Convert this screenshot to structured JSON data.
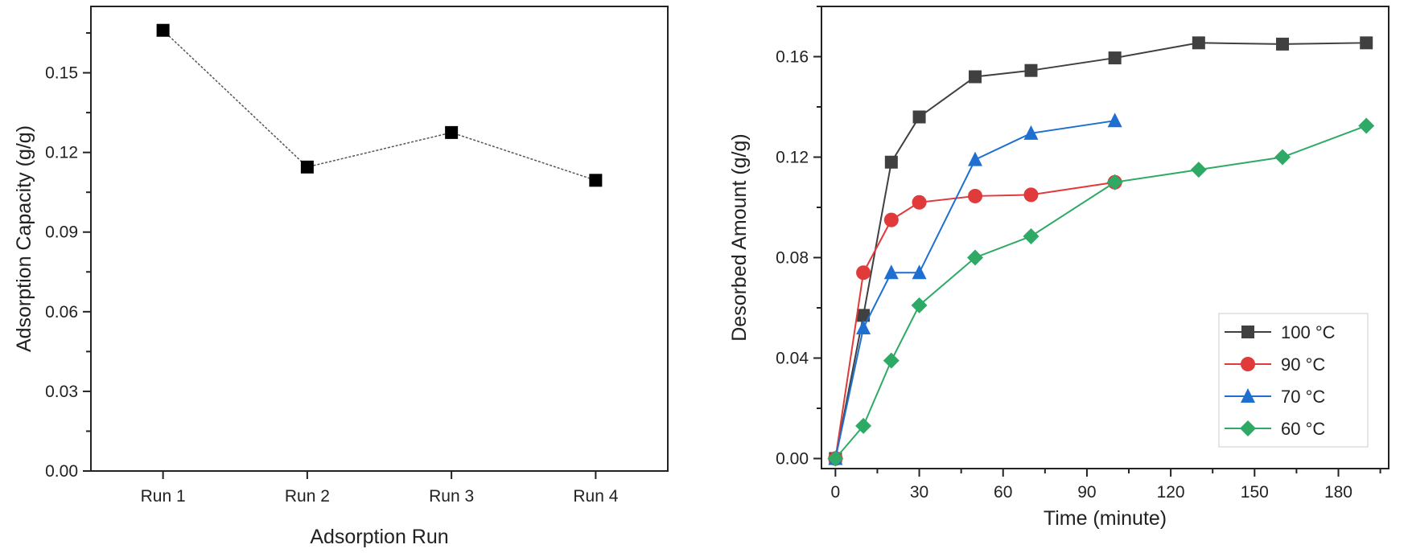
{
  "chart_data": [
    {
      "type": "line",
      "title": "",
      "xlabel": "Adsorption Run",
      "ylabel": "Adsorption Capacity (g/g)",
      "categories": [
        "Run 1",
        "Run 2",
        "Run 3",
        "Run 4"
      ],
      "values": [
        0.166,
        0.1145,
        0.1275,
        0.1095
      ],
      "ylim": [
        0,
        0.175
      ],
      "yticks": [
        "0.00",
        "0.03",
        "0.06",
        "0.09",
        "0.12",
        "0.15"
      ],
      "color": "#000000",
      "line_style": "dotted"
    },
    {
      "type": "line",
      "title": "",
      "xlabel": "Time (minute)",
      "ylabel": "Desorbed Amount (g/g)",
      "xlim": [
        -5,
        198
      ],
      "ylim": [
        -0.004,
        0.18
      ],
      "xticks": [
        "0",
        "30",
        "60",
        "90",
        "120",
        "150",
        "180"
      ],
      "yticks": [
        "0.00",
        "0.04",
        "0.08",
        "0.12",
        "0.16"
      ],
      "legend_position": "bottom-right",
      "series": [
        {
          "name": "100 °C",
          "color": "#404040",
          "marker": "square",
          "x": [
            0,
            10,
            20,
            30,
            50,
            70,
            100,
            130,
            160,
            190
          ],
          "y": [
            0,
            0.057,
            0.118,
            0.136,
            0.152,
            0.1545,
            0.1595,
            0.1655,
            0.165,
            0.1655
          ]
        },
        {
          "name": "90 °C",
          "color": "#e03a3a",
          "marker": "circle",
          "x": [
            0,
            10,
            20,
            30,
            50,
            70,
            100
          ],
          "y": [
            0,
            0.074,
            0.095,
            0.102,
            0.1045,
            0.105,
            0.11
          ]
        },
        {
          "name": "70 °C",
          "color": "#1f6fd1",
          "marker": "triangle",
          "x": [
            0,
            10,
            20,
            30,
            50,
            70,
            100
          ],
          "y": [
            0,
            0.052,
            0.074,
            0.074,
            0.119,
            0.1295,
            0.1345
          ]
        },
        {
          "name": "60 °C",
          "color": "#2eaa66",
          "marker": "diamond",
          "x": [
            0,
            10,
            20,
            30,
            50,
            70,
            100,
            130,
            160,
            190
          ],
          "y": [
            0,
            0.013,
            0.039,
            0.061,
            0.08,
            0.0885,
            0.11,
            0.115,
            0.12,
            0.1325
          ]
        }
      ]
    }
  ]
}
